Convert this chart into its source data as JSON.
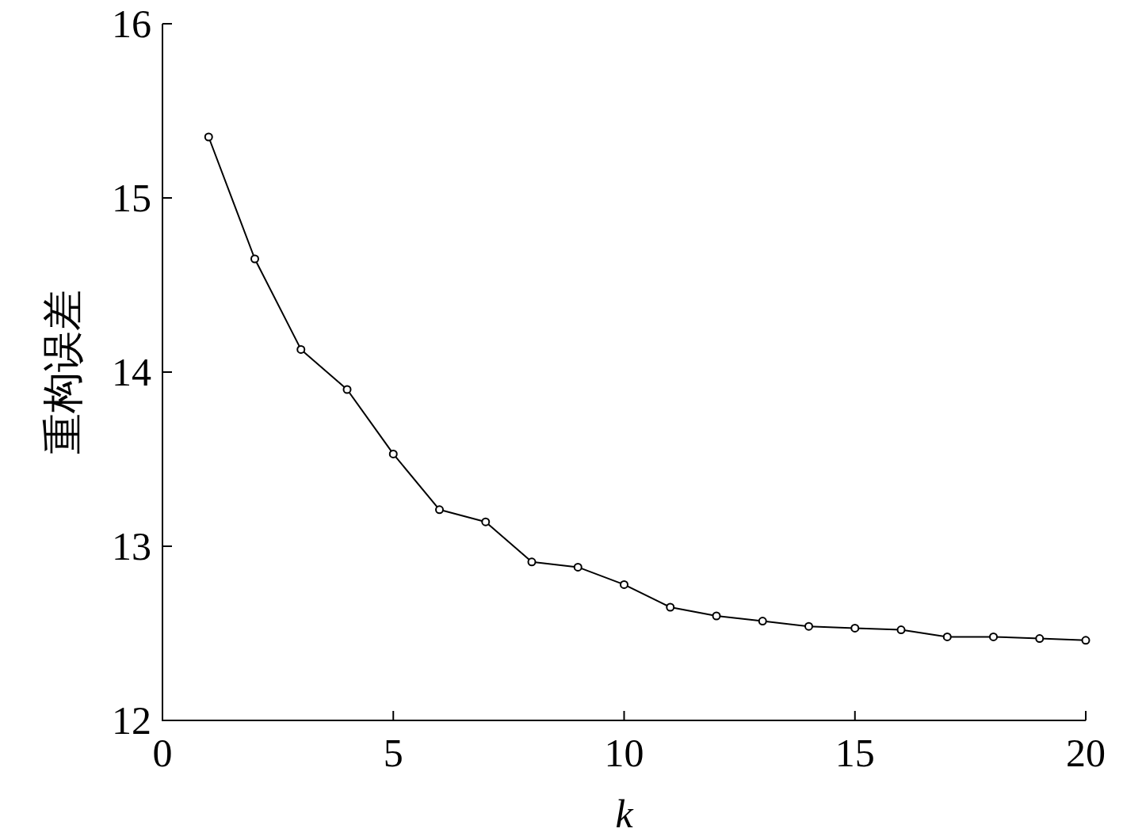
{
  "chart_data": {
    "type": "line",
    "xlabel": "k",
    "ylabel": "重构误差",
    "x": [
      1,
      2,
      3,
      4,
      5,
      6,
      7,
      8,
      9,
      10,
      11,
      12,
      13,
      14,
      15,
      16,
      17,
      18,
      19,
      20
    ],
    "values": [
      15.35,
      14.65,
      14.13,
      13.9,
      13.53,
      13.21,
      13.14,
      12.91,
      12.88,
      12.78,
      12.65,
      12.6,
      12.57,
      12.54,
      12.53,
      12.52,
      12.48,
      12.48,
      12.47,
      12.46
    ],
    "color": "#000000",
    "marker": "circle",
    "line_style": "solid",
    "xlim": [
      0,
      20
    ],
    "xticks": [
      0,
      5,
      10,
      15,
      20
    ],
    "ylim": [
      12,
      16
    ],
    "yticks": [
      12,
      13,
      14,
      15,
      16
    ],
    "grid": false
  }
}
